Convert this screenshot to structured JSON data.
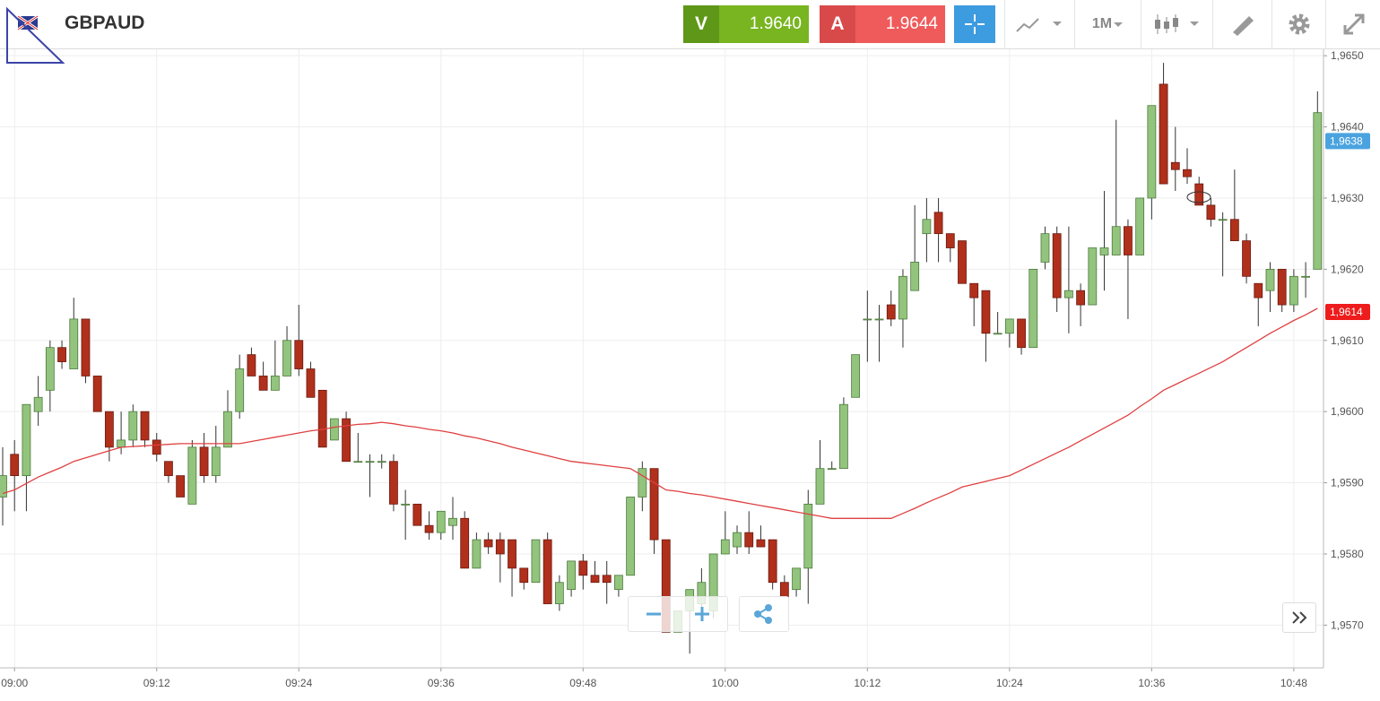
{
  "header": {
    "symbol": "GBPAUD",
    "sell_label": "V",
    "sell_price": "1.9640",
    "buy_label": "A",
    "buy_price": "1.9644",
    "timeframe": "1M"
  },
  "chart_data": {
    "type": "candlestick",
    "categories": [
      null,
      "09:00",
      null,
      null,
      null,
      null,
      null,
      null,
      null,
      null,
      null,
      null,
      null,
      "09:12",
      null,
      null,
      null,
      null,
      null,
      null,
      null,
      null,
      null,
      null,
      null,
      "09:24",
      null,
      null,
      null,
      null,
      null,
      null,
      null,
      null,
      null,
      null,
      null,
      "09:36",
      null,
      null,
      null,
      null,
      null,
      null,
      null,
      null,
      null,
      null,
      null,
      "09:48",
      null,
      null,
      null,
      null,
      null,
      null,
      null,
      null,
      null,
      null,
      null,
      "10:00",
      null,
      null,
      null,
      null,
      null,
      null,
      null,
      null,
      null,
      null,
      null,
      "10:12",
      null,
      null,
      null,
      null,
      null,
      null,
      null,
      null,
      null,
      null,
      null,
      "10:24",
      null,
      null,
      null,
      null,
      null,
      null,
      null,
      null,
      null,
      null,
      null,
      "10:36",
      null,
      null,
      null,
      null,
      null,
      null,
      null,
      null,
      null,
      null,
      null,
      "10:48",
      null,
      null
    ],
    "ohlc": [
      [
        1.9588,
        1.9595,
        1.9584,
        1.9591
      ],
      [
        1.9594,
        1.9596,
        1.9586,
        1.9591
      ],
      [
        1.9591,
        1.9601,
        1.9586,
        1.9601
      ],
      [
        1.96,
        1.9605,
        1.9598,
        1.9602
      ],
      [
        1.9603,
        1.961,
        1.96,
        1.9609
      ],
      [
        1.9609,
        1.961,
        1.9606,
        1.9607
      ],
      [
        1.9606,
        1.9616,
        1.9606,
        1.9613
      ],
      [
        1.9613,
        1.9613,
        1.9604,
        1.9605
      ],
      [
        1.9605,
        1.9605,
        1.96,
        1.96
      ],
      [
        1.96,
        1.96,
        1.9593,
        1.9595
      ],
      [
        1.9595,
        1.96,
        1.9594,
        1.9596
      ],
      [
        1.9596,
        1.9601,
        1.9595,
        1.96
      ],
      [
        1.96,
        1.96,
        1.9595,
        1.9596
      ],
      [
        1.9596,
        1.9597,
        1.9593,
        1.9594
      ],
      [
        1.9593,
        1.9593,
        1.959,
        1.9591
      ],
      [
        1.9591,
        1.9591,
        1.9588,
        1.9588
      ],
      [
        1.9587,
        1.9596,
        1.9587,
        1.9595
      ],
      [
        1.9595,
        1.9597,
        1.959,
        1.9591
      ],
      [
        1.9591,
        1.9598,
        1.959,
        1.9595
      ],
      [
        1.9595,
        1.9603,
        1.9595,
        1.96
      ],
      [
        1.96,
        1.9608,
        1.9599,
        1.9606
      ],
      [
        1.9608,
        1.9609,
        1.9605,
        1.9605
      ],
      [
        1.9605,
        1.9607,
        1.9603,
        1.9603
      ],
      [
        1.9603,
        1.961,
        1.9603,
        1.9605
      ],
      [
        1.9605,
        1.9612,
        1.9605,
        1.961
      ],
      [
        1.961,
        1.9615,
        1.9605,
        1.9606
      ],
      [
        1.9606,
        1.9607,
        1.9602,
        1.9602
      ],
      [
        1.9603,
        1.9603,
        1.9595,
        1.9595
      ],
      [
        1.9596,
        1.9599,
        1.9596,
        1.9599
      ],
      [
        1.9599,
        1.96,
        1.9593,
        1.9593
      ],
      [
        1.9593,
        1.9597,
        1.9593,
        1.9593
      ],
      [
        1.9593,
        1.9594,
        1.9588,
        1.9593
      ],
      [
        1.9593,
        1.9594,
        1.9592,
        1.9593
      ],
      [
        1.9593,
        1.9594,
        1.9586,
        1.9587
      ],
      [
        1.9587,
        1.9589,
        1.9582,
        1.9587
      ],
      [
        1.9587,
        1.9587,
        1.9584,
        1.9584
      ],
      [
        1.9584,
        1.9586,
        1.9582,
        1.9583
      ],
      [
        1.9583,
        1.9586,
        1.9582,
        1.9586
      ],
      [
        1.9584,
        1.9588,
        1.9582,
        1.9585
      ],
      [
        1.9585,
        1.9586,
        1.9578,
        1.9578
      ],
      [
        1.9578,
        1.9583,
        1.9578,
        1.9582
      ],
      [
        1.9582,
        1.9583,
        1.958,
        1.9581
      ],
      [
        1.9582,
        1.9583,
        1.9576,
        1.958
      ],
      [
        1.9582,
        1.9582,
        1.9574,
        1.9578
      ],
      [
        1.9578,
        1.9578,
        1.9575,
        1.9576
      ],
      [
        1.9576,
        1.9582,
        1.9576,
        1.9582
      ],
      [
        1.9582,
        1.9583,
        1.9573,
        1.9573
      ],
      [
        1.9573,
        1.9577,
        1.9572,
        1.9576
      ],
      [
        1.9575,
        1.9579,
        1.9574,
        1.9579
      ],
      [
        1.9579,
        1.958,
        1.9575,
        1.9577
      ],
      [
        1.9577,
        1.9579,
        1.9576,
        1.9576
      ],
      [
        1.9577,
        1.9579,
        1.9573,
        1.9576
      ],
      [
        1.9575,
        1.9577,
        1.9574,
        1.9577
      ],
      [
        1.9577,
        1.9588,
        1.9577,
        1.9588
      ],
      [
        1.9588,
        1.9593,
        1.9586,
        1.9592
      ],
      [
        1.9592,
        1.9592,
        1.958,
        1.9582
      ],
      [
        1.9582,
        1.9582,
        1.9569,
        1.9569
      ],
      [
        1.9569,
        1.9572,
        1.9569,
        1.9572
      ],
      [
        1.9572,
        1.9575,
        1.9566,
        1.9575
      ],
      [
        1.9573,
        1.9578,
        1.9572,
        1.9576
      ],
      [
        1.9572,
        1.958,
        1.9571,
        1.958
      ],
      [
        1.958,
        1.9586,
        1.958,
        1.9582
      ],
      [
        1.9581,
        1.9584,
        1.958,
        1.9583
      ],
      [
        1.9583,
        1.9586,
        1.958,
        1.9581
      ],
      [
        1.9582,
        1.9584,
        1.9581,
        1.9581
      ],
      [
        1.9582,
        1.9582,
        1.9575,
        1.9576
      ],
      [
        1.9576,
        1.9577,
        1.9574,
        1.9574
      ],
      [
        1.9575,
        1.9578,
        1.9574,
        1.9578
      ],
      [
        1.9578,
        1.9589,
        1.9573,
        1.9587
      ],
      [
        1.9587,
        1.9596,
        1.9587,
        1.9592
      ],
      [
        1.9592,
        1.9593,
        1.9592,
        1.9592
      ],
      [
        1.9592,
        1.9602,
        1.9592,
        1.9601
      ],
      [
        1.9602,
        1.9608,
        1.9602,
        1.9608
      ],
      [
        1.9613,
        1.9617,
        1.9607,
        1.9613
      ],
      [
        1.9613,
        1.9615,
        1.9607,
        1.9613
      ],
      [
        1.9615,
        1.9617,
        1.9612,
        1.9613
      ],
      [
        1.9613,
        1.962,
        1.9609,
        1.9619
      ],
      [
        1.9617,
        1.9629,
        1.9617,
        1.9621
      ],
      [
        1.9625,
        1.963,
        1.9621,
        1.9627
      ],
      [
        1.9628,
        1.963,
        1.9621,
        1.9625
      ],
      [
        1.9625,
        1.9625,
        1.9621,
        1.9623
      ],
      [
        1.9624,
        1.9624,
        1.9618,
        1.9618
      ],
      [
        1.9618,
        1.9618,
        1.9612,
        1.9616
      ],
      [
        1.9617,
        1.9617,
        1.9607,
        1.9611
      ],
      [
        1.9611,
        1.9614,
        1.9611,
        1.9611
      ],
      [
        1.9611,
        1.9613,
        1.9609,
        1.9613
      ],
      [
        1.9613,
        1.9613,
        1.9608,
        1.9609
      ],
      [
        1.9609,
        1.962,
        1.9609,
        1.962
      ],
      [
        1.9621,
        1.9626,
        1.962,
        1.9625
      ],
      [
        1.9625,
        1.9626,
        1.9614,
        1.9616
      ],
      [
        1.9616,
        1.9626,
        1.9611,
        1.9617
      ],
      [
        1.9617,
        1.9618,
        1.9612,
        1.9615
      ],
      [
        1.9615,
        1.9623,
        1.9615,
        1.9623
      ],
      [
        1.9622,
        1.9631,
        1.9617,
        1.9623
      ],
      [
        1.9622,
        1.9641,
        1.9622,
        1.9626
      ],
      [
        1.9626,
        1.9627,
        1.9613,
        1.9622
      ],
      [
        1.9622,
        1.963,
        1.9622,
        1.963
      ],
      [
        1.963,
        1.9643,
        1.9627,
        1.9643
      ],
      [
        1.9646,
        1.9649,
        1.9632,
        1.9632
      ],
      [
        1.9635,
        1.964,
        1.9631,
        1.9634
      ],
      [
        1.9634,
        1.9637,
        1.9632,
        1.9633
      ],
      [
        1.9632,
        1.9633,
        1.9629,
        1.9629
      ],
      [
        1.9629,
        1.963,
        1.9626,
        1.9627
      ],
      [
        1.9627,
        1.9628,
        1.9619,
        1.9627
      ],
      [
        1.9627,
        1.9634,
        1.9624,
        1.9624
      ],
      [
        1.9624,
        1.9625,
        1.9618,
        1.9619
      ],
      [
        1.9618,
        1.9618,
        1.9612,
        1.9616
      ],
      [
        1.9617,
        1.9621,
        1.9614,
        1.962
      ],
      [
        1.962,
        1.962,
        1.9614,
        1.9615
      ],
      [
        1.9615,
        1.962,
        1.9614,
        1.9619
      ],
      [
        1.9619,
        1.9621,
        1.9616,
        1.9619
      ],
      [
        1.962,
        1.9645,
        1.962,
        1.9642
      ]
    ],
    "up_color": "#93c47d",
    "down_color": "#b0301c",
    "ma": {
      "color": "#e04040",
      "values": [
        1.95885,
        1.9589,
        1.95899,
        1.95908,
        1.95915,
        1.95922,
        1.9593,
        1.95935,
        1.9594,
        1.95945,
        1.9595,
        1.95951,
        1.95952,
        1.95953,
        1.95954,
        1.95955,
        1.95955,
        1.95955,
        1.95955,
        1.95955,
        1.95955,
        1.95958,
        1.95961,
        1.95964,
        1.95967,
        1.9597,
        1.95973,
        1.95975,
        1.95978,
        1.9598,
        1.95982,
        1.95983,
        1.95985,
        1.95983,
        1.9598,
        1.95978,
        1.95975,
        1.95973,
        1.9597,
        1.95966,
        1.95963,
        1.95959,
        1.95955,
        1.9595,
        1.95946,
        1.95942,
        1.95938,
        1.95934,
        1.9593,
        1.95928,
        1.95926,
        1.95924,
        1.95922,
        1.9592,
        1.9591,
        1.959,
        1.9589,
        1.95888,
        1.95885,
        1.95883,
        1.9588,
        1.95877,
        1.95874,
        1.95871,
        1.95868,
        1.95865,
        1.95862,
        1.95859,
        1.95856,
        1.95853,
        1.9585,
        1.9585,
        1.9585,
        1.9585,
        1.9585,
        1.9585,
        1.95857,
        1.95864,
        1.95872,
        1.95879,
        1.95886,
        1.95894,
        1.95898,
        1.95902,
        1.95906,
        1.9591,
        1.95918,
        1.95926,
        1.95934,
        1.95942,
        1.9595,
        1.95959,
        1.95968,
        1.95977,
        1.95986,
        1.95995,
        1.96007,
        1.96018,
        1.9603,
        1.96038,
        1.96046,
        1.96054,
        1.96062,
        1.9607,
        1.9608,
        1.9609,
        1.961,
        1.9611,
        1.96119,
        1.96128,
        1.96136,
        1.96145
      ]
    },
    "price_tags": [
      {
        "value": 1.9638,
        "label": "1,9638",
        "color": "#4aa3df"
      },
      {
        "value": 1.9614,
        "label": "1,9614",
        "color": "#ee1c1c"
      }
    ],
    "ylim": [
      1.9564,
      1.96509
    ],
    "yticks": [
      {
        "value": 1.957,
        "label": "1,9570"
      },
      {
        "value": 1.958,
        "label": "1,9580"
      },
      {
        "value": 1.959,
        "label": "1,9590"
      },
      {
        "value": 1.96,
        "label": "1,9600"
      },
      {
        "value": 1.961,
        "label": "1,9610"
      },
      {
        "value": 1.962,
        "label": "1,9620"
      },
      {
        "value": 1.963,
        "label": "1,9630"
      },
      {
        "value": 1.964,
        "label": "1,9640"
      },
      {
        "value": 1.965,
        "label": "1,9650"
      }
    ],
    "grid": true
  }
}
